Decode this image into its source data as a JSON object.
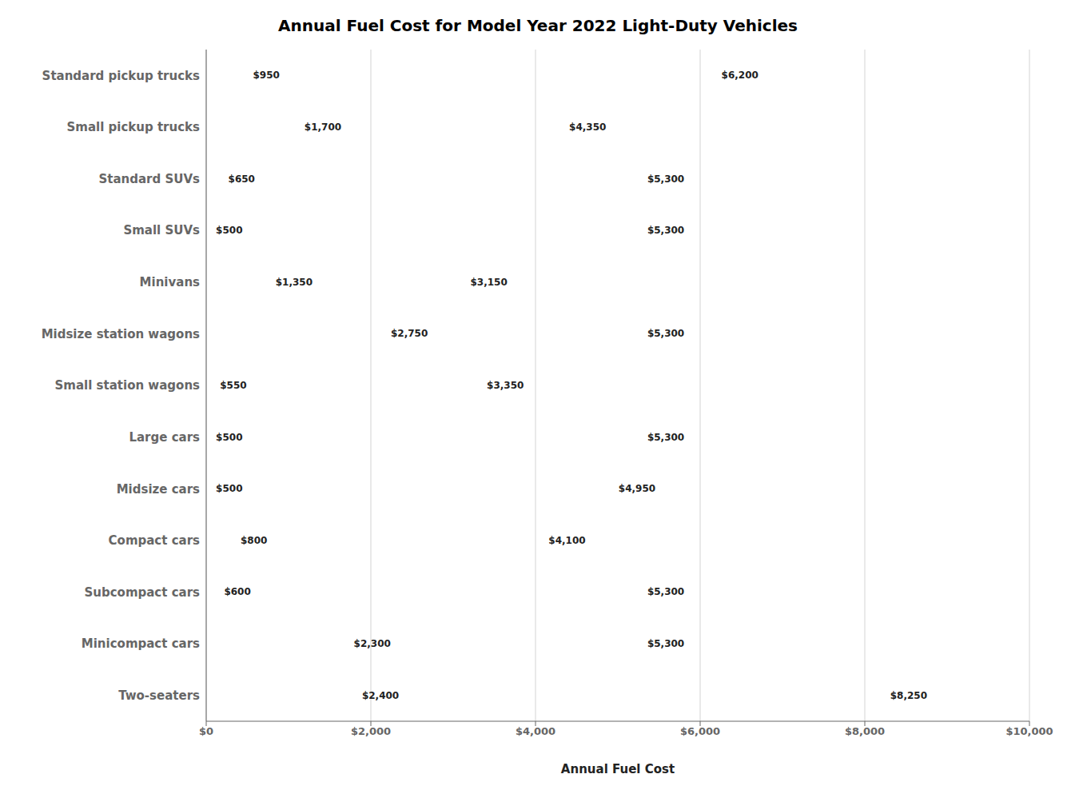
{
  "chart_data": {
    "type": "bar",
    "orientation": "horizontal",
    "title": "Annual Fuel Cost for Model Year 2022 Light-Duty Vehicles",
    "xlabel": "Annual Fuel Cost",
    "categories": [
      "Two-seaters",
      "Minicompact cars",
      "Subcompact cars",
      "Compact cars",
      "Midsize cars",
      "Large cars",
      "Small station wagons",
      "Midsize station wagons",
      "Minivans",
      "Small SUVs",
      "Standard SUVs",
      "Small pickup trucks",
      "Standard pickup trucks"
    ],
    "values": [
      [
        2400,
        8250
      ],
      [
        2300,
        5300
      ],
      [
        600,
        5300
      ],
      [
        800,
        4100
      ],
      [
        500,
        4950
      ],
      [
        500,
        5300
      ],
      [
        550,
        3350
      ],
      [
        2750,
        5300
      ],
      [
        1350,
        3150
      ],
      [
        500,
        5300
      ],
      [
        650,
        5300
      ],
      [
        1700,
        4350
      ],
      [
        950,
        6200
      ]
    ],
    "value_labels": [
      [
        "$2,400",
        "$8,250"
      ],
      [
        "$2,300",
        "$5,300"
      ],
      [
        "$600",
        "$5,300"
      ],
      [
        "$800",
        "$4,100"
      ],
      [
        "$500",
        "$4,950"
      ],
      [
        "$500",
        "$5,300"
      ],
      [
        "$550",
        "$3,350"
      ],
      [
        "$2,750",
        "$5,300"
      ],
      [
        "$1,350",
        "$3,150"
      ],
      [
        "$500",
        "$5,300"
      ],
      [
        "$650",
        "$5,300"
      ],
      [
        "$1,700",
        "$4,350"
      ],
      [
        "$950",
        "$6,200"
      ]
    ],
    "color": "#8DC63F",
    "xlim": [
      0,
      10000
    ],
    "xticks": [
      {
        "value": 0,
        "label": "$0"
      },
      {
        "value": 2000,
        "label": "$2,000"
      },
      {
        "value": 4000,
        "label": "$4,000"
      },
      {
        "value": 6000,
        "label": "$6,000"
      },
      {
        "value": 8000,
        "label": "$8,000"
      },
      {
        "value": 10000,
        "label": "$10,000"
      }
    ],
    "grid": true,
    "data_labels": true
  }
}
